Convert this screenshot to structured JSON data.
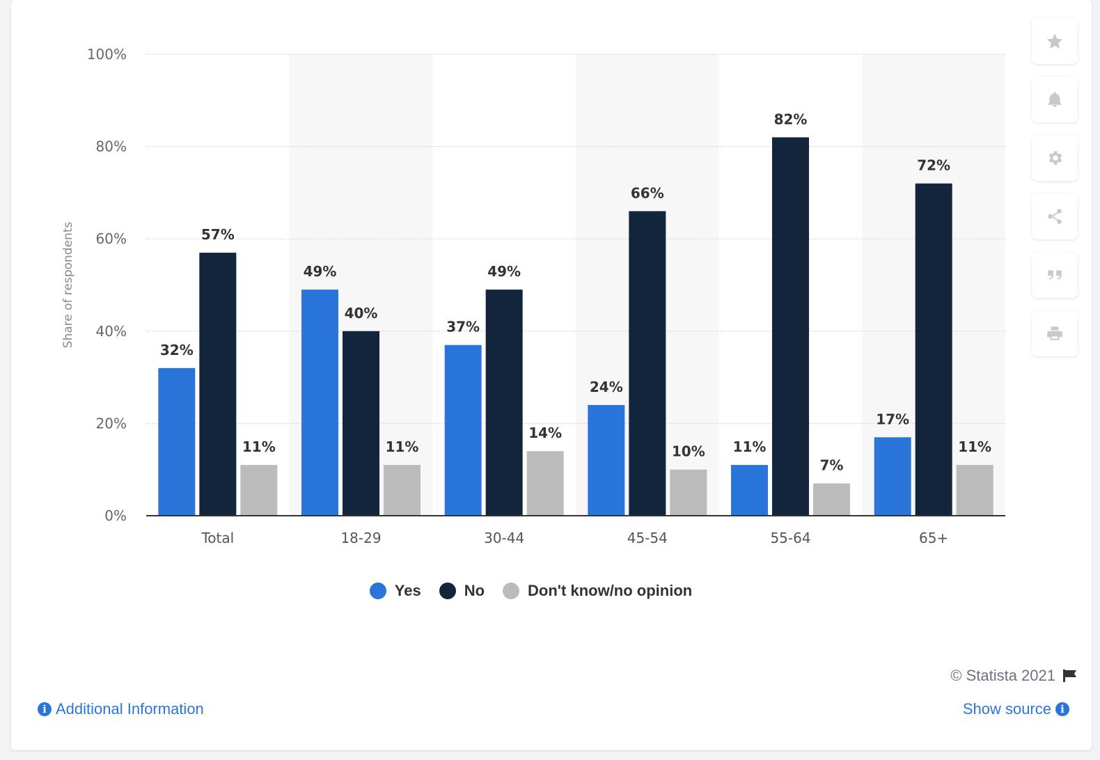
{
  "chart_data": {
    "type": "bar",
    "title": "",
    "xlabel": "",
    "ylabel": "Share of respondents",
    "ylim": [
      0,
      100
    ],
    "yticks": [
      "0%",
      "20%",
      "40%",
      "60%",
      "80%",
      "100%"
    ],
    "categories": [
      "Total",
      "18-29",
      "30-44",
      "45-54",
      "55-64",
      "65+"
    ],
    "series": [
      {
        "name": "Yes",
        "color": "#2a75d9",
        "values": [
          32,
          49,
          37,
          24,
          11,
          17
        ],
        "labels": [
          "32%",
          "49%",
          "37%",
          "24%",
          "11%",
          "17%"
        ]
      },
      {
        "name": "No",
        "color": "#12253d",
        "values": [
          57,
          40,
          49,
          66,
          82,
          72
        ],
        "labels": [
          "57%",
          "40%",
          "49%",
          "66%",
          "82%",
          "72%"
        ]
      },
      {
        "name": "Don't know/no opinion",
        "color": "#bbbbbb",
        "values": [
          11,
          11,
          14,
          10,
          7,
          11
        ],
        "labels": [
          "11%",
          "11%",
          "14%",
          "10%",
          "7%",
          "11%"
        ]
      }
    ],
    "legend_position": "bottom-center"
  },
  "legend": {
    "items": [
      {
        "label": "Yes",
        "color": "#2a75d9"
      },
      {
        "label": "No",
        "color": "#12253d"
      },
      {
        "label": "Don't know/no opinion",
        "color": "#bbbbbb"
      }
    ]
  },
  "toolbar": {
    "icons": [
      "star-icon",
      "bell-icon",
      "gear-icon",
      "share-icon",
      "quote-icon",
      "print-icon"
    ]
  },
  "footer": {
    "copyright": "© Statista 2021",
    "additional_info": "Additional Information",
    "show_source": "Show source"
  }
}
